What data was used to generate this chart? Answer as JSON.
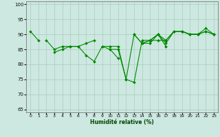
{
  "background_color": "#cce8e0",
  "grid_color": "#aaccbb",
  "line_color": "#008800",
  "xlim": [
    -0.5,
    23.5
  ],
  "ylim": [
    64,
    101
  ],
  "yticks": [
    65,
    70,
    75,
    80,
    85,
    90,
    95,
    100
  ],
  "xticks": [
    0,
    1,
    2,
    3,
    4,
    5,
    6,
    7,
    8,
    9,
    10,
    11,
    12,
    13,
    14,
    15,
    16,
    17,
    18,
    19,
    20,
    21,
    22,
    23
  ],
  "xlabel": "Humidité relative (%)",
  "xlabel_color": "#004400",
  "series": [
    [
      91,
      88,
      null,
      84,
      85,
      86,
      86,
      87,
      88,
      null,
      85,
      82,
      null,
      null,
      87,
      87,
      90,
      86,
      null,
      91,
      90,
      90,
      92,
      90
    ],
    [
      null,
      null,
      88,
      85,
      86,
      86,
      86,
      83,
      81,
      86,
      85,
      85,
      75,
      74,
      88,
      88,
      88,
      88,
      91,
      91,
      90,
      90,
      null,
      90
    ],
    [
      null,
      null,
      null,
      null,
      null,
      null,
      null,
      null,
      null,
      86,
      86,
      86,
      75,
      90,
      87,
      88,
      90,
      87,
      91,
      91,
      90,
      90,
      91,
      90
    ],
    [
      null,
      null,
      null,
      null,
      null,
      null,
      null,
      null,
      null,
      null,
      null,
      null,
      null,
      90,
      87,
      88,
      90,
      88,
      91,
      91,
      90,
      90,
      91,
      90
    ]
  ]
}
